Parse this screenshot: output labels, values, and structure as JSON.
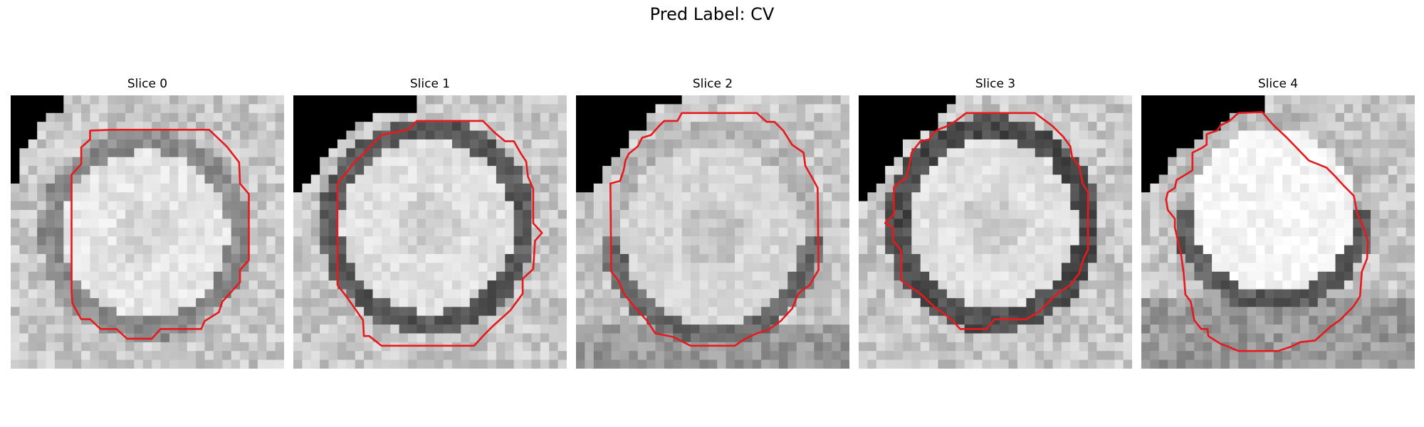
{
  "figure": {
    "title": "Pred Label: CV"
  },
  "panels": [
    {
      "title": "Slice 0"
    },
    {
      "title": "Slice 1"
    },
    {
      "title": "Slice 2"
    },
    {
      "title": "Slice 3"
    },
    {
      "title": "Slice 4"
    }
  ],
  "colors": {
    "contour": "#e8191c",
    "mask": "#000000",
    "background": "#ffffff"
  }
}
